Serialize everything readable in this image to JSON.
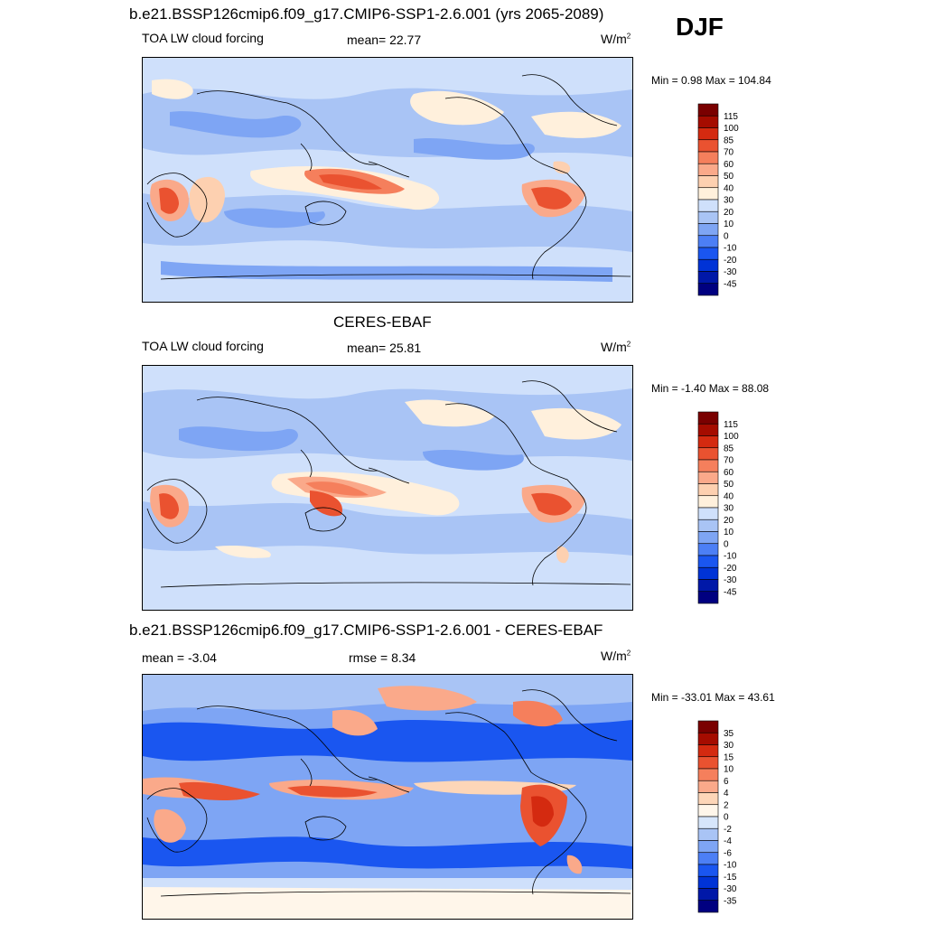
{
  "season": "DJF",
  "colors": {
    "main_scale": [
      "#000080",
      "#0018a8",
      "#0033d6",
      "#1a56f0",
      "#4c7ff5",
      "#7ea5f4",
      "#a9c4f5",
      "#cfe0fb",
      "#fff0dc",
      "#fdd0b0",
      "#faa98a",
      "#f57f5c",
      "#ea5230",
      "#d42a10",
      "#a50c00",
      "#7a0000"
    ],
    "diff_scale": [
      "#000080",
      "#0018a8",
      "#0033d6",
      "#1a56f0",
      "#4c7ff5",
      "#7ea5f4",
      "#a9c4f5",
      "#d7e6fb",
      "#fff6ea",
      "#fdd6b8",
      "#faa98a",
      "#f57f5c",
      "#ea5230",
      "#d42a10",
      "#a50c00",
      "#7a0000"
    ],
    "ocean_base": "#d0e1fb",
    "diff_base": "#7ea5f4"
  },
  "panels": [
    {
      "title": "b.e21.BSSP126cmip6.f09_g17.CMIP6-SSP1-2.6.001 (yrs 2065-2089)",
      "left_label": "TOA LW cloud forcing",
      "center_label": "mean=  22.77",
      "unit_label": "W/m",
      "unit_sup": "2",
      "minmax": "Min =   0.98 Max = 104.84",
      "colorbar_ticks": [
        "115",
        "100",
        "85",
        "70",
        "60",
        "50",
        "40",
        "30",
        "20",
        "10",
        "0",
        "-10",
        "-20",
        "-30",
        "-45"
      ]
    },
    {
      "title": "CERES-EBAF",
      "left_label": "TOA LW cloud forcing",
      "center_label": "mean=  25.81",
      "unit_label": "W/m",
      "unit_sup": "2",
      "minmax": "Min =  -1.40 Max =  88.08",
      "colorbar_ticks": [
        "115",
        "100",
        "85",
        "70",
        "60",
        "50",
        "40",
        "30",
        "20",
        "10",
        "0",
        "-10",
        "-20",
        "-30",
        "-45"
      ]
    },
    {
      "title": "b.e21.BSSP126cmip6.f09_g17.CMIP6-SSP1-2.6.001 - CERES-EBAF",
      "left_label": "mean =  -3.04",
      "center_label": "rmse =   8.34",
      "unit_label": "W/m",
      "unit_sup": "2",
      "minmax": "Min = -33.01 Max =  43.61",
      "colorbar_ticks": [
        "35",
        "30",
        "15",
        "10",
        "6",
        "4",
        "2",
        "0",
        "-2",
        "-4",
        "-6",
        "-10",
        "-15",
        "-30",
        "-35"
      ]
    }
  ]
}
